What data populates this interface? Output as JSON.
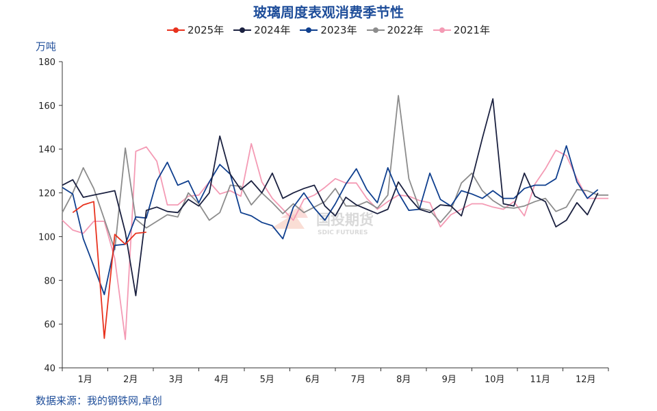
{
  "chart_data": {
    "type": "line",
    "title": "玻璃周度表观消费季节性",
    "ylabel": "万吨",
    "ylim": [
      40,
      180
    ],
    "yticks": [
      40,
      60,
      80,
      100,
      120,
      140,
      160,
      180
    ],
    "xlim": [
      1,
      53
    ],
    "months": [
      "1月",
      "2月",
      "3月",
      "4月",
      "5月",
      "6月",
      "7月",
      "8月",
      "9月",
      "10月",
      "11月",
      "12月"
    ],
    "legend": "top",
    "grid": false,
    "series": [
      {
        "name": "2025年",
        "color": "#e8321e",
        "x": [
          2,
          3,
          4,
          5,
          6,
          7,
          8,
          9,
          10,
          11
        ],
        "y": [
          111,
          114.5,
          116,
          53.5,
          101,
          96.5,
          101.5,
          102,
          null,
          null
        ]
      },
      {
        "name": "2024年",
        "color": "#1b2140",
        "x": [
          1,
          2,
          3,
          4,
          5,
          6,
          7,
          8,
          9,
          10,
          11,
          12,
          13,
          14,
          15,
          16,
          17,
          18,
          19,
          20,
          21,
          22,
          23,
          24,
          25,
          26,
          27,
          28,
          29,
          30,
          31,
          32,
          33,
          34,
          35,
          36,
          37,
          38,
          39,
          40,
          41,
          42,
          43,
          44,
          45,
          46,
          47,
          48,
          49,
          50,
          51,
          52
        ],
        "y": [
          123.5,
          126,
          118,
          119,
          120,
          121,
          102,
          73,
          112,
          113.5,
          111.5,
          111,
          117,
          114,
          120,
          146,
          128.5,
          121.5,
          125.5,
          120,
          129,
          117.5,
          120,
          122,
          123.5,
          114,
          109.5,
          118,
          114.5,
          112.5,
          110.5,
          112.5,
          125,
          118,
          112.5,
          111,
          114.5,
          114,
          109.5,
          126,
          145,
          163,
          115,
          114,
          129,
          118.5,
          116,
          104.5,
          107.5,
          115.5,
          110,
          120
        ]
      },
      {
        "name": "2023年",
        "color": "#0f3f8e",
        "x": [
          1,
          2,
          3,
          4,
          5,
          6,
          7,
          8,
          9,
          10,
          11,
          12,
          13,
          14,
          15,
          16,
          17,
          18,
          19,
          20,
          21,
          22,
          23,
          24,
          25,
          26,
          27,
          28,
          29,
          30,
          31,
          32,
          33,
          34,
          35,
          36,
          37,
          38,
          39,
          40,
          41,
          42,
          43,
          44,
          45,
          46,
          47,
          48,
          49,
          50,
          51,
          52,
          53
        ],
        "y": [
          122.5,
          119.5,
          99,
          86.5,
          73.5,
          96,
          96.5,
          109,
          108.5,
          125.5,
          134,
          123.5,
          125.5,
          115.5,
          125,
          133,
          128.5,
          111,
          109.5,
          106.5,
          105,
          99,
          113.5,
          120,
          113,
          107.5,
          115,
          124,
          131,
          121.5,
          115.5,
          131.5,
          120,
          112,
          112.5,
          129,
          117,
          114,
          121,
          119.5,
          117.5,
          121,
          117.5,
          117.5,
          122,
          123.5,
          123.5,
          126.5,
          141.5,
          125,
          117.5,
          121.5,
          null
        ]
      },
      {
        "name": "2022年",
        "color": "#8c8c8c",
        "x": [
          1,
          2,
          3,
          4,
          5,
          6,
          7,
          8,
          9,
          10,
          11,
          12,
          13,
          14,
          15,
          16,
          17,
          18,
          19,
          20,
          21,
          22,
          23,
          24,
          25,
          26,
          27,
          28,
          29,
          30,
          31,
          32,
          33,
          34,
          35,
          36,
          37,
          38,
          39,
          40,
          41,
          42,
          43,
          44,
          45,
          46,
          47,
          48,
          49,
          50,
          51,
          52,
          53
        ],
        "y": [
          111,
          120,
          131.5,
          122,
          108,
          94,
          140.5,
          108,
          104,
          107,
          110,
          109,
          120,
          115,
          107.5,
          111,
          123.5,
          123,
          114.5,
          120,
          115.5,
          110.5,
          115,
          111,
          113.5,
          116,
          122,
          114,
          114,
          116,
          113,
          119,
          164.5,
          126.5,
          113,
          112,
          106.5,
          112,
          124.5,
          129,
          121,
          116.5,
          113.5,
          113,
          114,
          116,
          117.5,
          111.5,
          113.5,
          121.5,
          121,
          119,
          119
        ]
      },
      {
        "name": "2021年",
        "color": "#f49ab4",
        "x": [
          1,
          2,
          3,
          4,
          5,
          6,
          7,
          8,
          9,
          10,
          11,
          12,
          13,
          14,
          15,
          16,
          17,
          18,
          19,
          20,
          21,
          22,
          23,
          24,
          25,
          26,
          27,
          28,
          29,
          30,
          31,
          32,
          33,
          34,
          35,
          36,
          37,
          38,
          39,
          40,
          41,
          42,
          43,
          44,
          45,
          46,
          47,
          48,
          49,
          50,
          51,
          52,
          53
        ],
        "y": [
          107.5,
          103,
          101.5,
          107,
          107,
          90,
          53,
          139,
          141,
          134.5,
          114.5,
          114.5,
          118.5,
          119,
          125,
          119.5,
          121,
          118.5,
          142.5,
          125,
          117.5,
          112.5,
          107.5,
          117,
          119,
          122.5,
          126.5,
          124.5,
          124.5,
          117.5,
          112.5,
          116,
          119,
          118.5,
          116.5,
          115.5,
          104.5,
          110,
          112.5,
          115,
          115,
          113.5,
          112.5,
          116,
          109.5,
          124,
          131,
          139.5,
          137,
          126.5,
          117.5,
          117.5,
          117.5
        ]
      }
    ]
  },
  "watermark": {
    "name": "国投期货",
    "sub": "SDIC FUTURES"
  },
  "footer": {
    "source": "数据来源：我的钢铁网,卓创"
  }
}
